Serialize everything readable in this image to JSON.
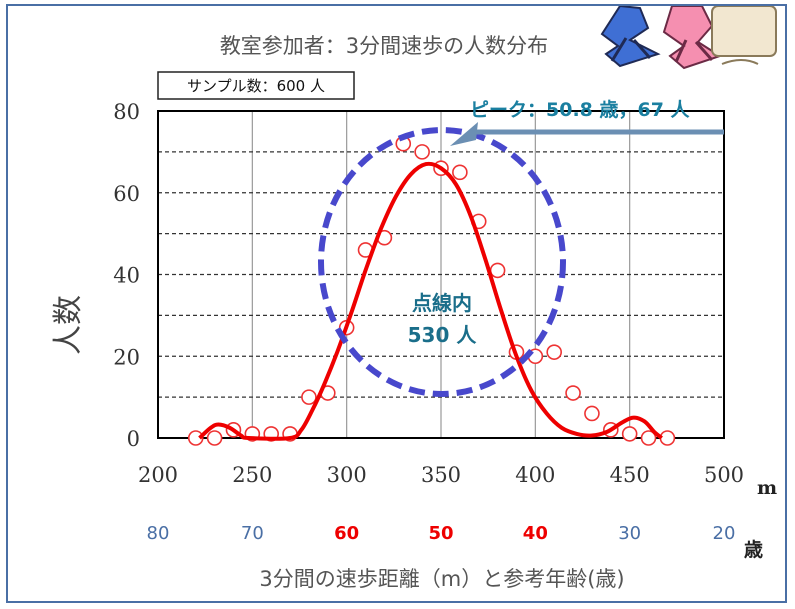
{
  "chart_data": {
    "type": "scatter",
    "title": "教室参加者：3分間速歩の人数分布",
    "xlabel": "3分間の速歩距離（m）と参考年齢(歳)",
    "ylabel": "人数",
    "x_unit": "m",
    "age_unit": "歳",
    "xlim": [
      200,
      500
    ],
    "ylim": [
      0,
      80
    ],
    "x_ticks": [
      "200",
      "250",
      "300",
      "350",
      "400",
      "450",
      "500"
    ],
    "y_ticks": [
      "0",
      "20",
      "40",
      "60",
      "80"
    ],
    "age_ticks": [
      {
        "at": 200,
        "label": "80",
        "highlight": false
      },
      {
        "at": 250,
        "label": "70",
        "highlight": false
      },
      {
        "at": 300,
        "label": "60",
        "highlight": true
      },
      {
        "at": 350,
        "label": "50",
        "highlight": true
      },
      {
        "at": 400,
        "label": "40",
        "highlight": true
      },
      {
        "at": 450,
        "label": "30",
        "highlight": false
      },
      {
        "at": 500,
        "label": "20",
        "highlight": false
      }
    ],
    "grid": true,
    "series": [
      {
        "type": "scatter",
        "color": "#ee3333",
        "points": [
          [
            220,
            0
          ],
          [
            230,
            0
          ],
          [
            240,
            2
          ],
          [
            250,
            1
          ],
          [
            260,
            1
          ],
          [
            270,
            1
          ],
          [
            280,
            10
          ],
          [
            290,
            11
          ],
          [
            300,
            27
          ],
          [
            310,
            46
          ],
          [
            320,
            49
          ],
          [
            330,
            72
          ],
          [
            340,
            70
          ],
          [
            350,
            66
          ],
          [
            360,
            65
          ],
          [
            370,
            53
          ],
          [
            380,
            41
          ],
          [
            390,
            21
          ],
          [
            400,
            20
          ],
          [
            410,
            21
          ],
          [
            420,
            11
          ],
          [
            430,
            6
          ],
          [
            440,
            2
          ],
          [
            450,
            1
          ],
          [
            460,
            0
          ],
          [
            470,
            0
          ]
        ]
      },
      {
        "type": "line",
        "color": "#ee0000",
        "points": [
          [
            222,
            0
          ],
          [
            228,
            2.5
          ],
          [
            232,
            3.3
          ],
          [
            238,
            2.5
          ],
          [
            244,
            0.6
          ],
          [
            248,
            0
          ],
          [
            270,
            0
          ],
          [
            276,
            2
          ],
          [
            282,
            7
          ],
          [
            288,
            13
          ],
          [
            295,
            21
          ],
          [
            302,
            30
          ],
          [
            310,
            41
          ],
          [
            318,
            51
          ],
          [
            326,
            59
          ],
          [
            334,
            64.5
          ],
          [
            342,
            67
          ],
          [
            350,
            66
          ],
          [
            358,
            62
          ],
          [
            366,
            54
          ],
          [
            374,
            43
          ],
          [
            382,
            31
          ],
          [
            390,
            20
          ],
          [
            398,
            11.5
          ],
          [
            406,
            6
          ],
          [
            414,
            2.5
          ],
          [
            422,
            1
          ],
          [
            430,
            0.6
          ],
          [
            438,
            1.5
          ],
          [
            446,
            3.8
          ],
          [
            452,
            5
          ],
          [
            458,
            4
          ],
          [
            463,
            1.5
          ],
          [
            467,
            0
          ]
        ]
      }
    ],
    "annotations": {
      "sample_box": "サンプル数：600 人",
      "peak_label": "ピーク：50.8 歳，67 人",
      "inner_label_1": "点線内",
      "inner_label_2": "530 人"
    },
    "colors": {
      "data_line": "#ee0000",
      "markers": "#ee3333",
      "dashed_ellipse": "#4444cc",
      "peak_arrow": "#6b8fb3",
      "frame": "#4a6fa5"
    }
  }
}
